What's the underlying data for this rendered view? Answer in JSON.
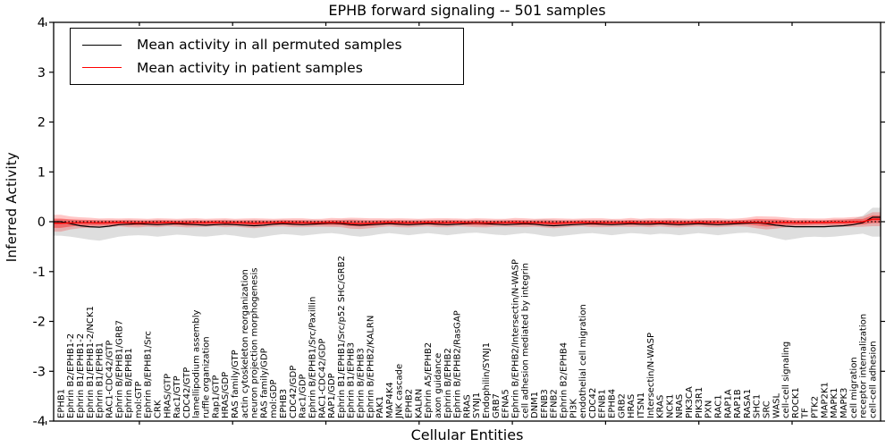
{
  "title": "EPHB forward signaling -- 501 samples",
  "legend": {
    "items": [
      {
        "label": "Mean activity in all permuted samples",
        "color": "#000000"
      },
      {
        "label": "Mean activity in patient samples",
        "color": "#ff0000"
      }
    ]
  },
  "axes": {
    "ylabel": "Inferred Activity",
    "xlabel": "Cellular Entities",
    "yticks": [
      "4",
      "3",
      "2",
      "1",
      "0",
      "-1",
      "-2",
      "-3",
      "-4"
    ]
  },
  "chart_data": {
    "type": "line",
    "title": "EPHB forward signaling -- 501 samples",
    "xlabel": "Cellular Entities",
    "ylabel": "Inferred Activity",
    "ylim": [
      -4,
      4
    ],
    "grid": false,
    "legend_position": "upper left",
    "zero_line_dotted": true,
    "categories": [
      "EPHB1",
      "Ephrin B2/EPHB1-2",
      "Ephrin B1/EPHB1-2",
      "Ephrin B1/EPHB1-2/NCK1",
      "Ephrin B1/EPHB1",
      "RAC1-CDC42/GTP",
      "Ephrin B/EPHB1/GRB7",
      "Ephrin B/EPHB1",
      "mol:GTP",
      "Ephrin B/EPHB1/Src",
      "CRK",
      "HRAS/GTP",
      "Rac1/GTP",
      "CDC42/GTP",
      "lamellipodium assembly",
      "ruffle organization",
      "Rap1/GTP",
      "HRAS/GDP",
      "RAS family/GTP",
      "actin cytoskeleton reorganization",
      "neuron projection morphogenesis",
      "RAS family/GDP",
      "mol:GDP",
      "EPHB3",
      "CDC42/GDP",
      "Rac1/GDP",
      "Ephrin B/EPHB1/Src/Paxillin",
      "RAC1-CDC42/GDP",
      "RAP1/GDP",
      "Ephrin B1/EPHB1/Src/p52 SHC/GRB2",
      "Ephrin B1/EPHB3",
      "Ephrin B/EPHB3",
      "Ephrin B/EPHB2/KALRN",
      "PAK1",
      "MAP4K4",
      "JNK cascade",
      "EPHB2",
      "KALRN",
      "Ephrin A5/EPHB2",
      "axon guidance",
      "Ephrin B/EPHB2",
      "Ephrin B/EPHB2/RasGAP",
      "RRAS",
      "SYNJ1",
      "Endophilin/SYNJ1",
      "GRB7",
      "EFNA5",
      "Ephrin B/EPHB2/Intersectin/N-WASP",
      "cell adhesion mediated by integrin",
      "DNM1",
      "EFNB3",
      "EFNB2",
      "Ephrin B2/EPHB4",
      "PI3K",
      "endothelial cell migration",
      "CDC42",
      "EFNB1",
      "EPHB4",
      "GRB2",
      "HRAS",
      "ITSN1",
      "Intersectin/N-WASP",
      "KRAS",
      "NCK1",
      "NRAS",
      "PIK3CA",
      "PIK3R1",
      "PXN",
      "RAC1",
      "RAP1A",
      "RAP1B",
      "RASA1",
      "SHC1",
      "SRC",
      "WASL",
      "cell-cell signaling",
      "ROCK1",
      "TF",
      "PTK2",
      "MAP2K1",
      "MAPK1",
      "MAPK3",
      "cell migration",
      "receptor internalization",
      "cell-cell adhesion"
    ],
    "series": [
      {
        "name": "Mean activity in all permuted samples",
        "color": "#000000",
        "values": [
          0.0,
          -0.04,
          -0.08,
          -0.1,
          -0.11,
          -0.09,
          -0.06,
          -0.05,
          -0.04,
          -0.05,
          -0.06,
          -0.05,
          -0.04,
          -0.05,
          -0.06,
          -0.07,
          -0.06,
          -0.05,
          -0.06,
          -0.07,
          -0.08,
          -0.07,
          -0.05,
          -0.04,
          -0.05,
          -0.06,
          -0.05,
          -0.04,
          -0.03,
          -0.04,
          -0.06,
          -0.07,
          -0.06,
          -0.05,
          -0.04,
          -0.05,
          -0.06,
          -0.05,
          -0.04,
          -0.05,
          -0.06,
          -0.05,
          -0.04,
          -0.03,
          -0.04,
          -0.05,
          -0.06,
          -0.05,
          -0.04,
          -0.05,
          -0.07,
          -0.08,
          -0.07,
          -0.06,
          -0.05,
          -0.04,
          -0.05,
          -0.06,
          -0.05,
          -0.04,
          -0.05,
          -0.05,
          -0.04,
          -0.05,
          -0.06,
          -0.05,
          -0.04,
          -0.05,
          -0.06,
          -0.05,
          -0.04,
          -0.03,
          -0.02,
          -0.04,
          -0.07,
          -0.09,
          -0.1,
          -0.1,
          -0.1,
          -0.1,
          -0.09,
          -0.08,
          -0.06,
          -0.02,
          0.09
        ]
      },
      {
        "name": "Mean activity in patient samples",
        "color": "#ff0000",
        "values": [
          -0.03,
          -0.025,
          -0.02,
          -0.02,
          -0.025,
          -0.02,
          -0.015,
          -0.02,
          -0.025,
          -0.02,
          -0.02,
          -0.015,
          -0.02,
          -0.025,
          -0.02,
          -0.02,
          -0.015,
          -0.02,
          -0.02,
          -0.025,
          -0.03,
          -0.025,
          -0.02,
          -0.015,
          -0.02,
          -0.02,
          -0.025,
          -0.02,
          -0.015,
          -0.02,
          -0.03,
          -0.035,
          -0.03,
          -0.02,
          -0.015,
          -0.02,
          -0.025,
          -0.02,
          -0.015,
          -0.02,
          -0.02,
          -0.015,
          -0.02,
          -0.02,
          -0.025,
          -0.02,
          -0.02,
          -0.015,
          -0.02,
          -0.02,
          -0.025,
          -0.03,
          -0.025,
          -0.02,
          -0.015,
          -0.02,
          -0.02,
          -0.025,
          -0.02,
          -0.015,
          -0.02,
          -0.02,
          -0.015,
          -0.02,
          -0.025,
          -0.02,
          -0.015,
          -0.02,
          -0.02,
          -0.02,
          -0.015,
          -0.01,
          -0.01,
          -0.025,
          -0.02,
          -0.015,
          -0.02,
          -0.02,
          -0.015,
          -0.015,
          -0.01,
          -0.01,
          -0.005,
          0.0,
          0.05
        ]
      }
    ],
    "bands": {
      "permuted": {
        "color": "rgba(0,0,0,0.13)",
        "upper": [
          0.05,
          0.04,
          0.03,
          0.03,
          0.04,
          0.03,
          0.03,
          0.04,
          0.03,
          0.03,
          0.04,
          0.03,
          0.03,
          0.04,
          0.03,
          0.03,
          0.03,
          0.04,
          0.03,
          0.03,
          0.04,
          0.03,
          0.03,
          0.04,
          0.03,
          0.03,
          0.04,
          0.03,
          0.03,
          0.04,
          0.05,
          0.04,
          0.03,
          0.03,
          0.04,
          0.03,
          0.03,
          0.04,
          0.03,
          0.03,
          0.04,
          0.03,
          0.03,
          0.04,
          0.03,
          0.03,
          0.04,
          0.03,
          0.03,
          0.04,
          0.05,
          0.04,
          0.03,
          0.03,
          0.04,
          0.03,
          0.03,
          0.04,
          0.03,
          0.03,
          0.04,
          0.03,
          0.03,
          0.04,
          0.03,
          0.03,
          0.04,
          0.03,
          0.03,
          0.04,
          0.03,
          0.03,
          0.04,
          0.05,
          0.04,
          0.03,
          0.03,
          0.04,
          0.03,
          0.03,
          0.04,
          0.05,
          0.06,
          0.12,
          0.28
        ],
        "lower": [
          -0.28,
          -0.3,
          -0.33,
          -0.36,
          -0.38,
          -0.34,
          -0.3,
          -0.28,
          -0.27,
          -0.28,
          -0.3,
          -0.28,
          -0.26,
          -0.27,
          -0.29,
          -0.3,
          -0.28,
          -0.26,
          -0.28,
          -0.31,
          -0.33,
          -0.3,
          -0.27,
          -0.25,
          -0.26,
          -0.28,
          -0.26,
          -0.24,
          -0.23,
          -0.25,
          -0.28,
          -0.3,
          -0.28,
          -0.25,
          -0.23,
          -0.25,
          -0.27,
          -0.25,
          -0.23,
          -0.25,
          -0.27,
          -0.25,
          -0.23,
          -0.22,
          -0.24,
          -0.26,
          -0.27,
          -0.25,
          -0.23,
          -0.25,
          -0.28,
          -0.3,
          -0.28,
          -0.26,
          -0.24,
          -0.23,
          -0.25,
          -0.27,
          -0.25,
          -0.23,
          -0.24,
          -0.26,
          -0.24,
          -0.25,
          -0.27,
          -0.25,
          -0.23,
          -0.25,
          -0.27,
          -0.25,
          -0.23,
          -0.22,
          -0.24,
          -0.28,
          -0.33,
          -0.37,
          -0.34,
          -0.31,
          -0.3,
          -0.31,
          -0.3,
          -0.28,
          -0.26,
          -0.24,
          -0.3
        ]
      },
      "patient": {
        "outer_color": "rgba(255,0,0,0.22)",
        "inner_color": "rgba(255,0,0,0.38)",
        "inner_scale": 0.55,
        "half_width": [
          0.17,
          0.13,
          0.11,
          0.1,
          0.09,
          0.09,
          0.08,
          0.09,
          0.09,
          0.08,
          0.09,
          0.08,
          0.08,
          0.09,
          0.09,
          0.08,
          0.08,
          0.09,
          0.08,
          0.09,
          0.1,
          0.09,
          0.08,
          0.08,
          0.09,
          0.09,
          0.08,
          0.08,
          0.09,
          0.09,
          0.11,
          0.11,
          0.1,
          0.09,
          0.08,
          0.09,
          0.09,
          0.08,
          0.08,
          0.09,
          0.09,
          0.08,
          0.08,
          0.09,
          0.09,
          0.08,
          0.08,
          0.09,
          0.09,
          0.08,
          0.09,
          0.1,
          0.09,
          0.08,
          0.08,
          0.09,
          0.09,
          0.08,
          0.08,
          0.09,
          0.08,
          0.09,
          0.08,
          0.09,
          0.09,
          0.08,
          0.08,
          0.09,
          0.09,
          0.08,
          0.08,
          0.09,
          0.12,
          0.13,
          0.12,
          0.1,
          0.09,
          0.09,
          0.08,
          0.08,
          0.09,
          0.09,
          0.1,
          0.1,
          0.14
        ]
      }
    }
  }
}
